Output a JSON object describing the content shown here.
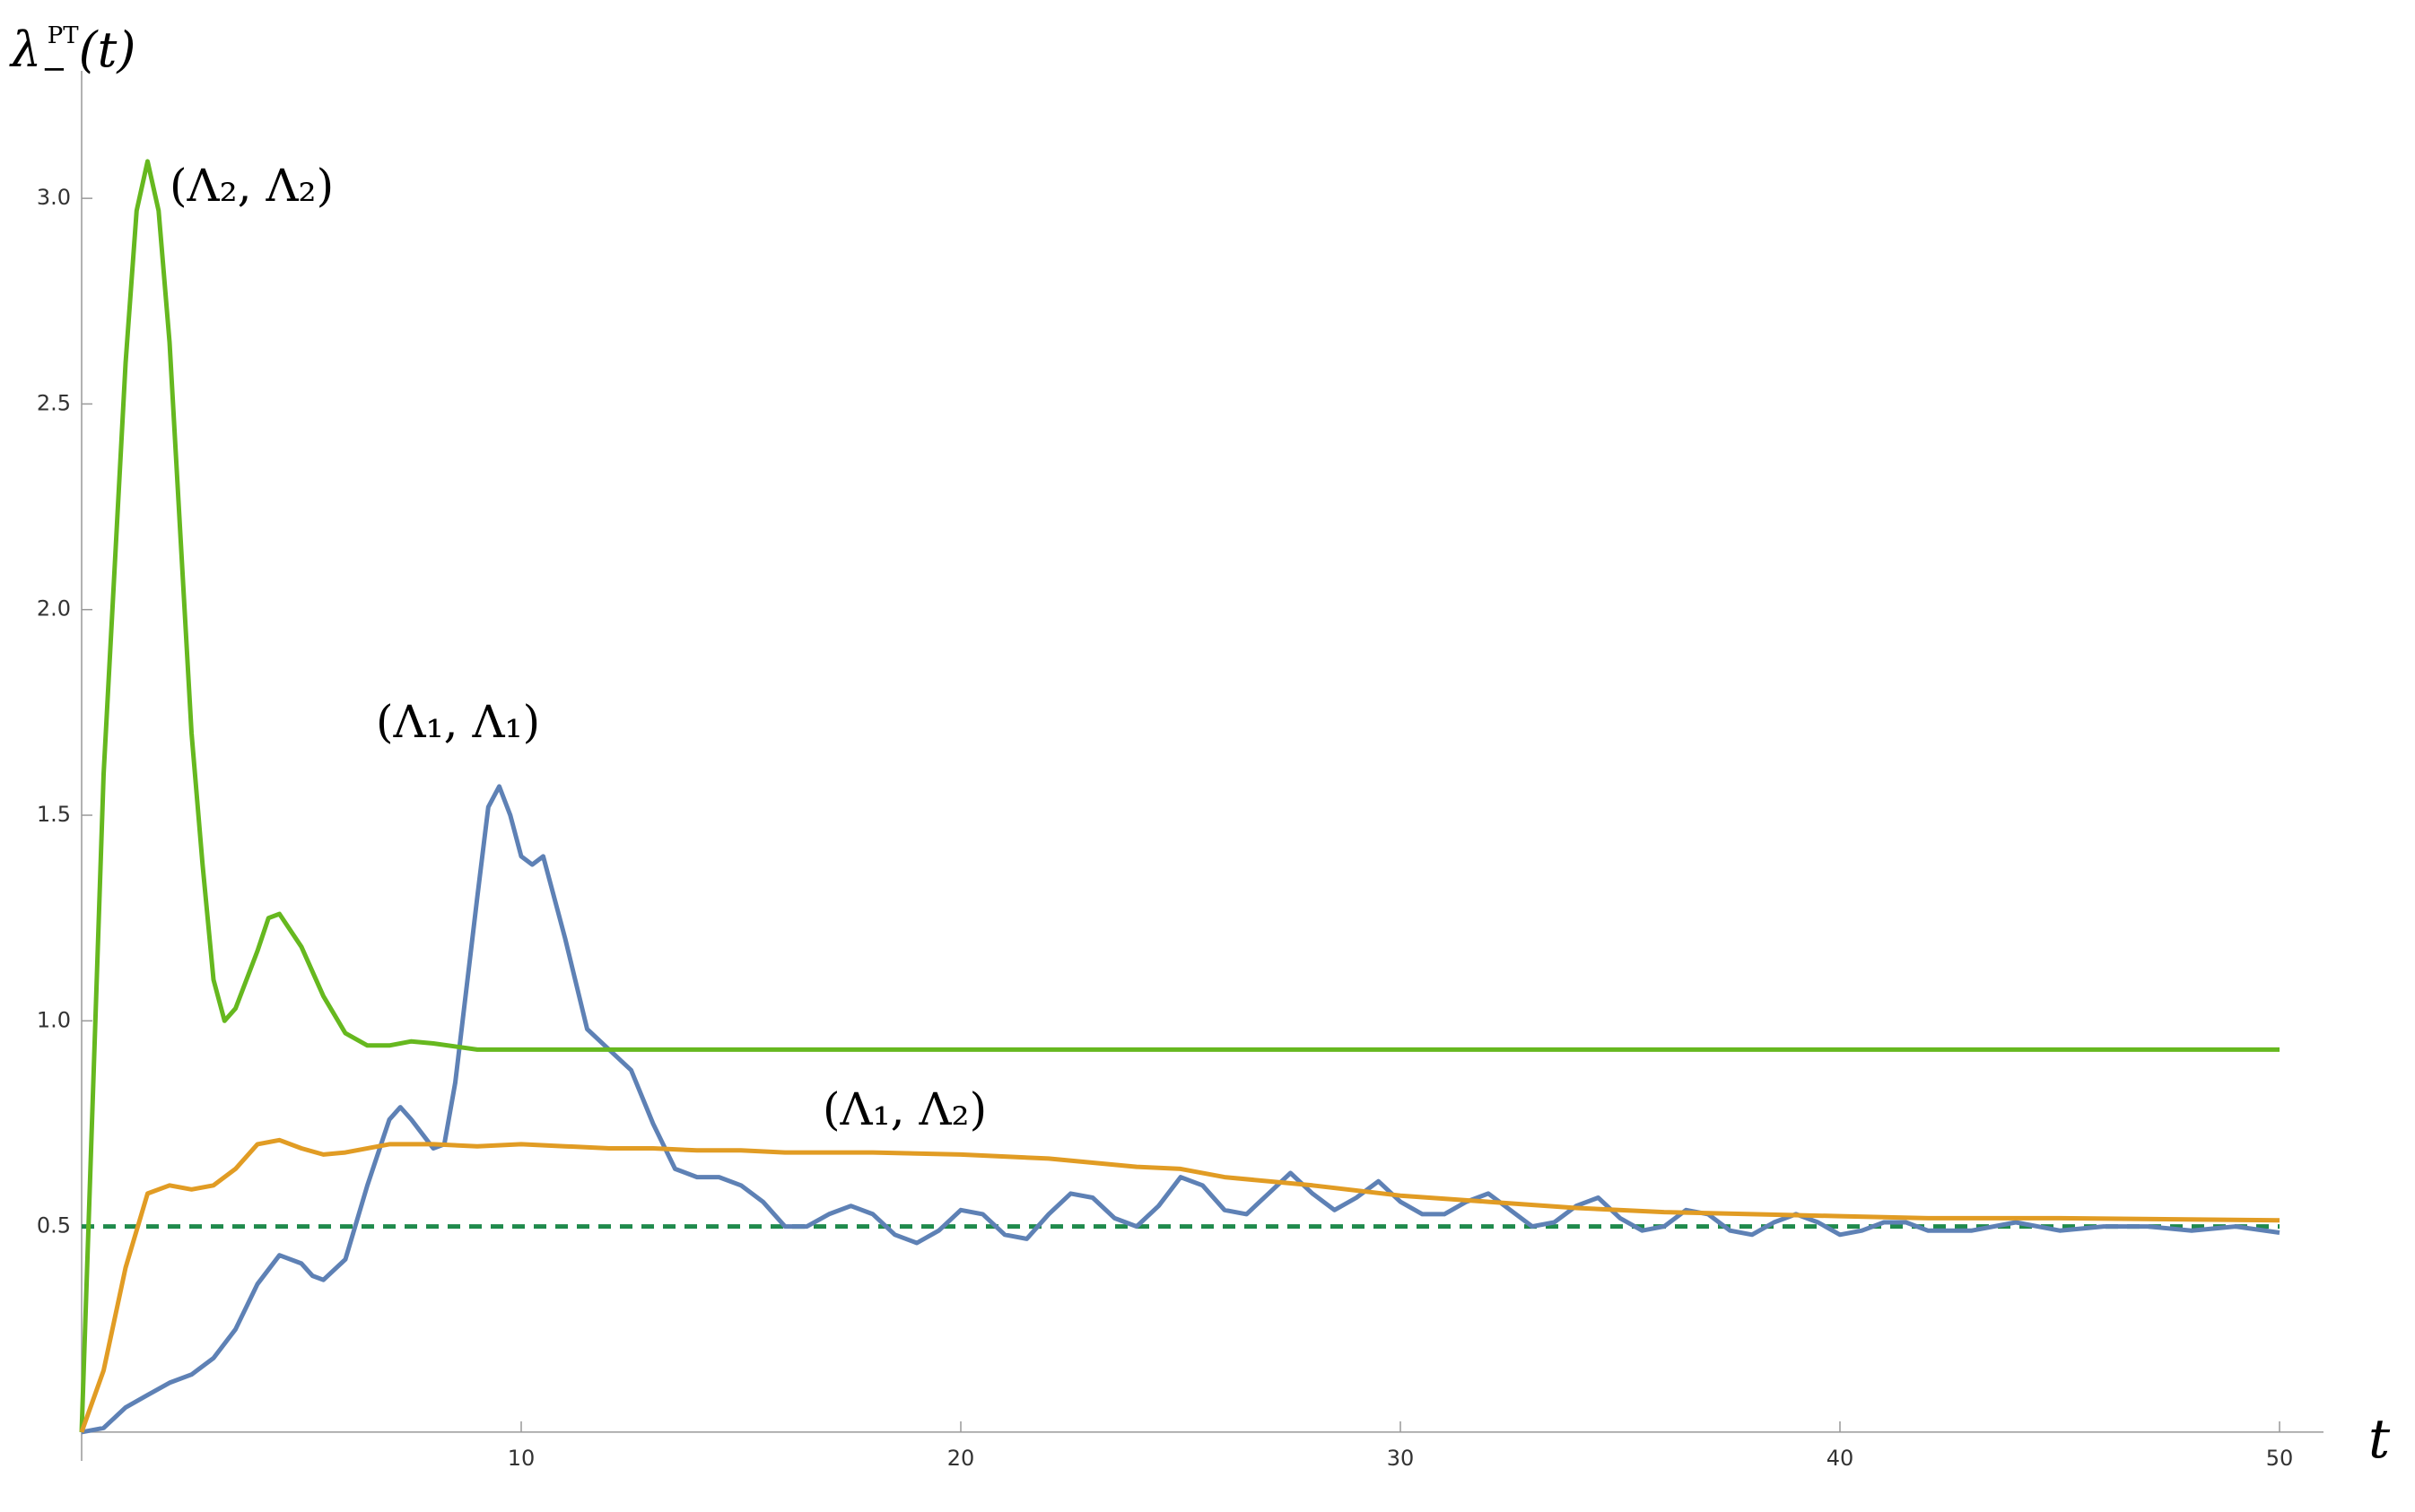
{
  "chart_data": {
    "type": "line",
    "x_label": "t",
    "y_label": {
      "base": "λ",
      "sub": "−",
      "sup": "PT",
      "arg": "(t)"
    },
    "xlim": [
      0,
      51
    ],
    "ylim": [
      -0.07,
      3.31
    ],
    "xticks": [
      10,
      20,
      30,
      40,
      50
    ],
    "yticks": [
      0.5,
      1.0,
      1.5,
      2.0,
      2.5,
      3.0
    ],
    "ytick_labels": [
      "0.5",
      "1.0",
      "1.5",
      "2.0",
      "2.5",
      "3.0"
    ],
    "hline": {
      "value": 0.5,
      "color": "#1f8a4c",
      "dashed": true
    },
    "series": [
      {
        "name": "(Λ₁, Λ₁)",
        "color": "#5e81b5",
        "x": [
          0,
          0.5,
          1,
          1.5,
          2,
          2.5,
          3,
          3.5,
          4,
          4.5,
          5,
          5.25,
          5.5,
          6,
          6.5,
          7,
          7.25,
          7.5,
          8,
          8.25,
          8.5,
          9,
          9.25,
          9.5,
          9.75,
          10,
          10.25,
          10.5,
          11,
          11.5,
          12,
          12.5,
          13,
          13.5,
          14,
          14.5,
          15,
          15.5,
          16,
          16.5,
          17,
          17.5,
          18,
          18.5,
          19,
          19.5,
          20,
          20.5,
          21,
          21.5,
          22,
          22.5,
          23,
          23.5,
          24,
          24.5,
          25,
          25.5,
          26,
          26.5,
          27,
          27.5,
          28,
          28.5,
          29,
          29.5,
          30,
          30.5,
          31,
          31.5,
          32,
          32.5,
          33,
          33.5,
          34,
          34.5,
          35,
          35.5,
          36,
          36.5,
          37,
          37.5,
          38,
          38.5,
          39,
          39.5,
          40,
          40.5,
          41,
          41.5,
          42,
          43,
          44,
          45,
          46,
          47,
          48,
          49,
          50
        ],
        "values": [
          0,
          0.01,
          0.06,
          0.09,
          0.12,
          0.14,
          0.18,
          0.25,
          0.36,
          0.43,
          0.41,
          0.38,
          0.37,
          0.42,
          0.6,
          0.76,
          0.79,
          0.76,
          0.69,
          0.7,
          0.85,
          1.3,
          1.52,
          1.57,
          1.5,
          1.4,
          1.38,
          1.4,
          1.2,
          0.98,
          0.93,
          0.88,
          0.75,
          0.64,
          0.62,
          0.62,
          0.6,
          0.56,
          0.5,
          0.5,
          0.53,
          0.55,
          0.53,
          0.48,
          0.46,
          0.49,
          0.54,
          0.53,
          0.48,
          0.47,
          0.53,
          0.58,
          0.57,
          0.52,
          0.5,
          0.55,
          0.62,
          0.6,
          0.54,
          0.53,
          0.58,
          0.63,
          0.58,
          0.54,
          0.57,
          0.61,
          0.56,
          0.53,
          0.53,
          0.56,
          0.58,
          0.54,
          0.5,
          0.51,
          0.55,
          0.57,
          0.52,
          0.49,
          0.5,
          0.54,
          0.53,
          0.49,
          0.48,
          0.51,
          0.53,
          0.51,
          0.48,
          0.49,
          0.51,
          0.51,
          0.49,
          0.49,
          0.51,
          0.49,
          0.5,
          0.5,
          0.49,
          0.5,
          0.485
        ]
      },
      {
        "name": "(Λ₂, Λ₂)",
        "color": "#66b81f",
        "x": [
          0,
          0.5,
          1,
          1.25,
          1.5,
          1.75,
          2,
          2.5,
          2.75,
          3,
          3.25,
          3.5,
          4,
          4.25,
          4.5,
          5,
          5.5,
          6,
          6.5,
          7,
          7.5,
          8,
          9,
          10,
          12,
          50
        ],
        "values": [
          0,
          1.6,
          2.6,
          2.97,
          3.09,
          2.97,
          2.65,
          1.7,
          1.38,
          1.1,
          1.0,
          1.03,
          1.17,
          1.25,
          1.26,
          1.18,
          1.06,
          0.97,
          0.94,
          0.94,
          0.95,
          0.945,
          0.93,
          0.93,
          0.93,
          0.93
        ]
      },
      {
        "name": "(Λ₁, Λ₂)",
        "color": "#e19c24",
        "x": [
          0,
          0.5,
          1,
          1.5,
          2,
          2.5,
          3,
          3.5,
          4,
          4.5,
          5,
          5.5,
          6,
          7,
          8,
          9,
          10,
          11,
          12,
          13,
          14,
          15,
          16,
          18,
          20,
          22,
          24,
          25,
          26,
          28,
          30,
          32,
          34,
          36,
          38,
          40,
          42,
          45,
          50
        ],
        "values": [
          0,
          0.15,
          0.4,
          0.58,
          0.6,
          0.59,
          0.6,
          0.64,
          0.7,
          0.71,
          0.69,
          0.675,
          0.68,
          0.7,
          0.7,
          0.695,
          0.7,
          0.695,
          0.69,
          0.69,
          0.685,
          0.685,
          0.68,
          0.68,
          0.675,
          0.665,
          0.645,
          0.64,
          0.62,
          0.6,
          0.575,
          0.56,
          0.545,
          0.535,
          0.53,
          0.525,
          0.52,
          0.52,
          0.515
        ]
      }
    ]
  }
}
